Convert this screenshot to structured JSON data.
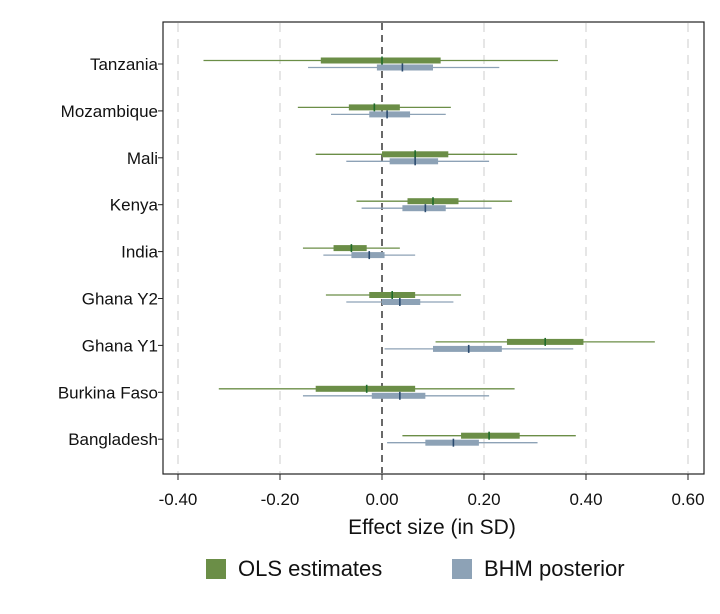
{
  "chart_data": {
    "type": "forest",
    "xlabel": "Effect size (in SD)",
    "xlim": [
      -0.4,
      0.6
    ],
    "xticks": [
      -0.4,
      -0.2,
      0.0,
      0.2,
      0.4,
      0.6
    ],
    "xtick_labels": [
      "-0.40",
      "-0.20",
      "0.00",
      "0.20",
      "0.40",
      "0.60"
    ],
    "reference_line": 0,
    "grid": true,
    "legend": {
      "placement": "bottom"
    },
    "categories": [
      "Tanzania",
      "Mozambique",
      "Mali",
      "Kenya",
      "India",
      "Ghana Y2",
      "Ghana Y1",
      "Burkina Faso",
      "Bangladesh"
    ],
    "series": [
      {
        "name": "OLS estimates",
        "color": "#6b8e47",
        "values": [
          {
            "point": 0.0,
            "box": [
              -0.12,
              0.115
            ],
            "whisker": [
              -0.35,
              0.345
            ]
          },
          {
            "point": -0.015,
            "box": [
              -0.065,
              0.035
            ],
            "whisker": [
              -0.165,
              0.135
            ]
          },
          {
            "point": 0.065,
            "box": [
              0.0,
              0.13
            ],
            "whisker": [
              -0.13,
              0.265
            ]
          },
          {
            "point": 0.1,
            "box": [
              0.05,
              0.15
            ],
            "whisker": [
              -0.05,
              0.255
            ]
          },
          {
            "point": -0.06,
            "box": [
              -0.095,
              -0.03
            ],
            "whisker": [
              -0.155,
              0.035
            ]
          },
          {
            "point": 0.02,
            "box": [
              -0.025,
              0.065
            ],
            "whisker": [
              -0.11,
              0.155
            ]
          },
          {
            "point": 0.32,
            "box": [
              0.245,
              0.395
            ],
            "whisker": [
              0.105,
              0.535
            ]
          },
          {
            "point": -0.03,
            "box": [
              -0.13,
              0.065
            ],
            "whisker": [
              -0.32,
              0.26
            ]
          },
          {
            "point": 0.21,
            "box": [
              0.155,
              0.27
            ],
            "whisker": [
              0.04,
              0.38
            ]
          }
        ]
      },
      {
        "name": "BHM posterior",
        "color": "#8da2b6",
        "values": [
          {
            "point": 0.04,
            "box": [
              -0.01,
              0.1
            ],
            "whisker": [
              -0.145,
              0.23
            ]
          },
          {
            "point": 0.01,
            "box": [
              -0.025,
              0.055
            ],
            "whisker": [
              -0.1,
              0.125
            ]
          },
          {
            "point": 0.065,
            "box": [
              0.015,
              0.11
            ],
            "whisker": [
              -0.07,
              0.21
            ]
          },
          {
            "point": 0.085,
            "box": [
              0.04,
              0.125
            ],
            "whisker": [
              -0.04,
              0.215
            ]
          },
          {
            "point": -0.025,
            "box": [
              -0.06,
              0.005
            ],
            "whisker": [
              -0.115,
              0.065
            ]
          },
          {
            "point": 0.035,
            "box": [
              0.0,
              0.075
            ],
            "whisker": [
              -0.07,
              0.14
            ]
          },
          {
            "point": 0.17,
            "box": [
              0.1,
              0.235
            ],
            "whisker": [
              0.005,
              0.375
            ]
          },
          {
            "point": 0.035,
            "box": [
              -0.02,
              0.085
            ],
            "whisker": [
              -0.155,
              0.21
            ]
          },
          {
            "point": 0.14,
            "box": [
              0.085,
              0.19
            ],
            "whisker": [
              0.01,
              0.305
            ]
          }
        ]
      }
    ]
  }
}
